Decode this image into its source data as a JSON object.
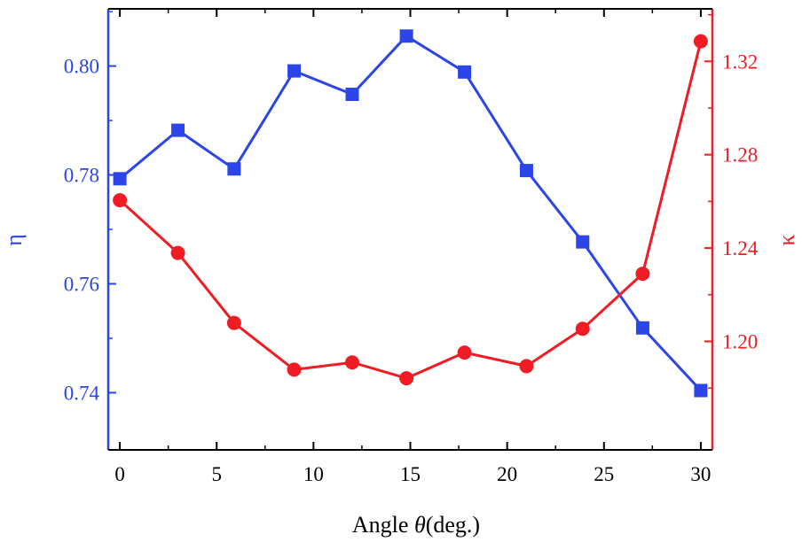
{
  "colors": {
    "blue": "#2b45e8",
    "red": "#f01c24",
    "axis": "#000000"
  },
  "chart_data": {
    "type": "line",
    "xlabel_prefix": "Angle ",
    "xlabel_symbol": "θ",
    "xlabel_suffix": "(deg.)",
    "ylabel_left": "η",
    "ylabel_right": "κ",
    "xlim": [
      -0.6,
      30.6
    ],
    "ylim_left": [
      0.7295,
      0.8105
    ],
    "ylim_right": [
      1.1535,
      1.3425
    ],
    "x_ticks": [
      0,
      5,
      10,
      15,
      20,
      25,
      30
    ],
    "y_left_ticks": [
      "0.74",
      "0.76",
      "0.78",
      "0.80"
    ],
    "y_right_ticks": [
      "1.20",
      "1.24",
      "1.28",
      "1.32"
    ],
    "series": [
      {
        "name": "η",
        "axis": "left",
        "marker": "square",
        "x": [
          0,
          3,
          5.9,
          9,
          12,
          14.8,
          17.8,
          21,
          23.9,
          27,
          30
        ],
        "values": [
          0.7793,
          0.7882,
          0.7811,
          0.7991,
          0.7948,
          0.8055,
          0.7989,
          0.7808,
          0.7677,
          0.7519,
          0.7404
        ]
      },
      {
        "name": "κ",
        "axis": "right",
        "marker": "circle",
        "x": [
          0,
          3,
          5.9,
          9,
          12,
          14.8,
          17.8,
          21,
          23.9,
          27,
          30
        ],
        "values": [
          1.2605,
          1.2379,
          1.2079,
          1.1879,
          1.191,
          1.1842,
          1.1952,
          1.1894,
          1.2054,
          1.229,
          1.3286
        ]
      }
    ]
  }
}
